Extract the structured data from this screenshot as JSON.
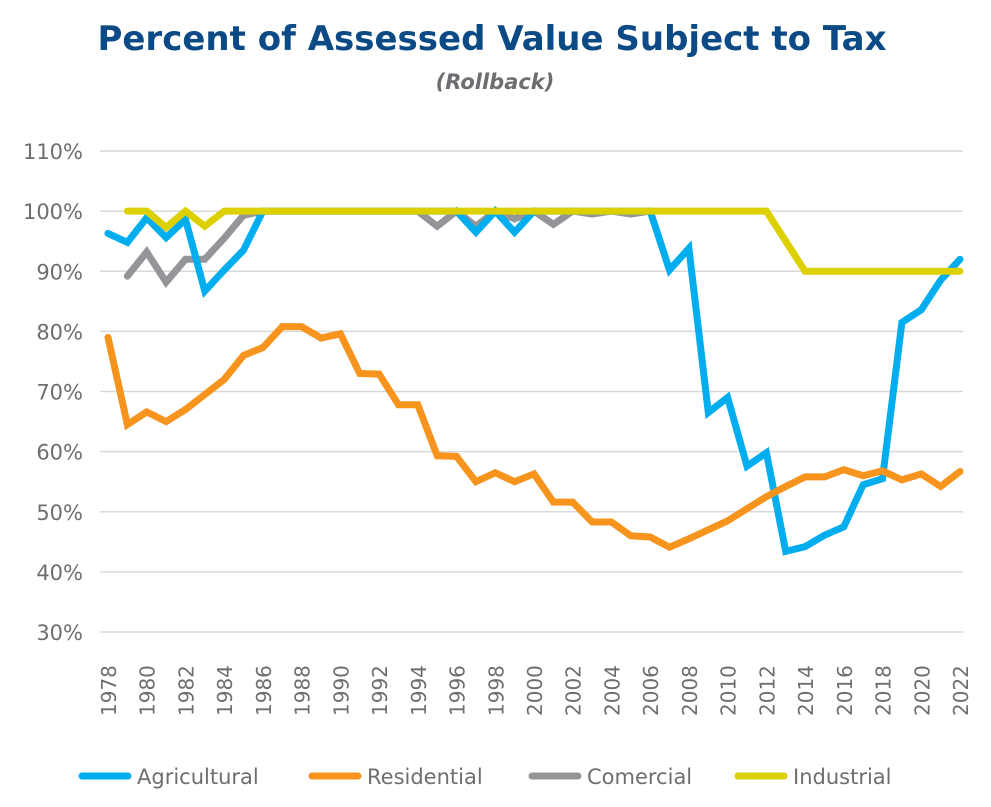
{
  "chart_data": {
    "type": "line",
    "title": "Percent of Assessed Value Subject to Tax",
    "subtitle": "(Rollback)",
    "xlabel": "",
    "ylabel": "",
    "ylim": [
      30,
      110
    ],
    "yticks": [
      30,
      40,
      50,
      60,
      70,
      80,
      90,
      100,
      110
    ],
    "ytick_labels": [
      "30%",
      "40%",
      "50%",
      "60%",
      "70%",
      "80%",
      "90%",
      "100%",
      "110%"
    ],
    "xlim": [
      1978,
      2022
    ],
    "xticks": [
      1978,
      1980,
      1982,
      1984,
      1986,
      1988,
      1990,
      1992,
      1994,
      1996,
      1998,
      2000,
      2002,
      2004,
      2006,
      2008,
      2010,
      2012,
      2014,
      2016,
      2018,
      2020,
      2022
    ],
    "grid": "horizontal",
    "legend_placement": "bottom",
    "x": [
      1978,
      1979,
      1980,
      1981,
      1982,
      1983,
      1984,
      1985,
      1986,
      1987,
      1988,
      1989,
      1990,
      1991,
      1992,
      1993,
      1994,
      1995,
      1996,
      1997,
      1998,
      1999,
      2000,
      2001,
      2002,
      2003,
      2004,
      2005,
      2006,
      2007,
      2008,
      2009,
      2010,
      2011,
      2012,
      2013,
      2014,
      2015,
      2016,
      2017,
      2018,
      2019,
      2020,
      2021,
      2022
    ],
    "series": [
      {
        "name": "Comercial",
        "color": "#939598",
        "values": [
          null,
          89.2,
          93.2,
          88.2,
          92,
          92,
          95.5,
          99.3,
          100,
          100,
          100,
          100,
          100,
          100,
          100,
          100,
          100,
          97.5,
          100,
          97.5,
          100,
          98.7,
          100,
          97.8,
          100,
          99.5,
          100,
          99.5,
          100,
          null,
          null,
          null,
          null,
          null,
          null,
          null,
          null,
          null,
          null,
          null,
          null,
          null,
          null,
          null,
          null
        ]
      },
      {
        "name": "Agricultural",
        "color": "#00aeef",
        "values": [
          96.3,
          94.8,
          98.9,
          95.6,
          98.6,
          86.7,
          90.2,
          93.5,
          100,
          100,
          100,
          100,
          100,
          100,
          100,
          100,
          100,
          100,
          100,
          96.5,
          100,
          96.5,
          100,
          100,
          100,
          100,
          100,
          100,
          100,
          90.2,
          93.8,
          66.5,
          69,
          57.6,
          59.8,
          43.4,
          44.2,
          46.1,
          47.5,
          54.5,
          55.5,
          81.5,
          83.6,
          88.5,
          92
        ]
      },
      {
        "name": "Residential",
        "color": "#f7941d",
        "values": [
          79,
          64.5,
          66.6,
          65,
          67,
          69.5,
          72,
          76,
          77.3,
          80.8,
          80.8,
          78.9,
          79.6,
          73,
          72.9,
          67.8,
          67.8,
          59.3,
          59.2,
          55,
          56.5,
          55,
          56.3,
          51.6,
          51.6,
          48.3,
          48.3,
          46,
          45.8,
          44.1,
          45.5,
          47,
          48.5,
          50.5,
          52.5,
          54.2,
          55.8,
          55.8,
          57,
          56,
          56.8,
          55.3,
          56.3,
          54.2,
          56.7
        ]
      },
      {
        "name": "Industrial",
        "color": "#ddd000",
        "values": [
          null,
          100,
          100,
          97.3,
          100,
          97.5,
          100,
          100,
          100,
          100,
          100,
          100,
          100,
          100,
          100,
          100,
          100,
          100,
          100,
          100,
          100,
          100,
          100,
          100,
          100,
          100,
          100,
          100,
          100,
          100,
          100,
          100,
          100,
          100,
          100,
          95,
          90,
          90,
          90,
          90,
          90,
          90,
          90,
          90,
          90
        ]
      }
    ],
    "legend_order": [
      "Agricultural",
      "Residential",
      "Comercial",
      "Industrial"
    ]
  },
  "colors": {
    "title": "#0b4a84",
    "subtitle": "#6d6e71",
    "axis_text": "#6d6e71",
    "grid": "#d9d9d9"
  }
}
